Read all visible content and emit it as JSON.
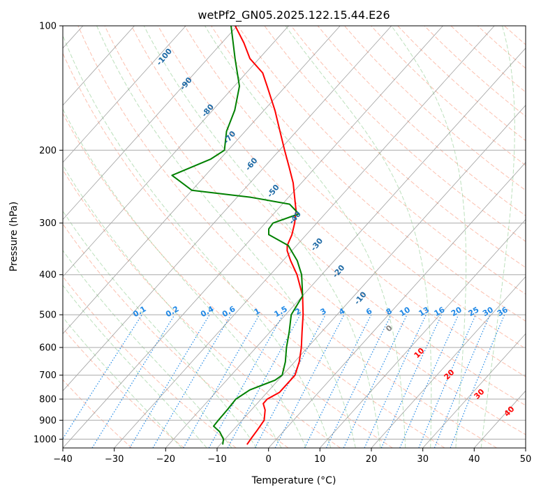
{
  "chart_data": {
    "type": "line",
    "chart_kind": "skew-T log-P diagram",
    "title": "wetPf2_GN05.2025.122.15.44.E26",
    "xlabel": "Temperature (°C)",
    "ylabel": "Pressure (hPa)",
    "xlim": [
      -40,
      50
    ],
    "ylim": [
      1050,
      100
    ],
    "y_scale": "log",
    "x_ticks": [
      -40,
      -30,
      -20,
      -10,
      0,
      10,
      20,
      30,
      40,
      50
    ],
    "x_tick_labels": [
      "−40",
      "−30",
      "−20",
      "−10",
      "0",
      "10",
      "20",
      "30",
      "40",
      "50"
    ],
    "y_ticks": [
      1000,
      900,
      800,
      700,
      600,
      500,
      400,
      300,
      200,
      100
    ],
    "y_tick_labels": [
      "1000",
      "900",
      "800",
      "700",
      "600",
      "500",
      "400",
      "300",
      "200",
      "100"
    ],
    "grid": true,
    "colors": {
      "temperature": "#ff0000",
      "dewpoint": "#008000",
      "dry_adiabat": "#fa8d6e",
      "moist_adiabat": "#8fcc8f",
      "mixing_ratio": "#1f88e6",
      "isotherm": "#808080",
      "wet_bulb_label": "#1f6aa5",
      "isobar": "#a9a9a9"
    },
    "series": [
      {
        "key": "temperature",
        "points": [
          {
            "p": 1030,
            "t": -4.8
          },
          {
            "p": 1000,
            "t": -5.0
          },
          {
            "p": 950,
            "t": -5.3
          },
          {
            "p": 900,
            "t": -5.7
          },
          {
            "p": 850,
            "t": -7.3
          },
          {
            "p": 820,
            "t": -8.8
          },
          {
            "p": 800,
            "t": -8.8
          },
          {
            "p": 770,
            "t": -7.6
          },
          {
            "p": 700,
            "t": -7.6
          },
          {
            "p": 650,
            "t": -9.1
          },
          {
            "p": 600,
            "t": -11.2
          },
          {
            "p": 550,
            "t": -13.8
          },
          {
            "p": 500,
            "t": -16.6
          },
          {
            "p": 450,
            "t": -20.0
          },
          {
            "p": 400,
            "t": -24.8
          },
          {
            "p": 370,
            "t": -28.5
          },
          {
            "p": 350,
            "t": -30.9
          },
          {
            "p": 340,
            "t": -31.8
          },
          {
            "p": 320,
            "t": -32.8
          },
          {
            "p": 300,
            "t": -34.3
          },
          {
            "p": 280,
            "t": -36.2
          },
          {
            "p": 260,
            "t": -38.8
          },
          {
            "p": 240,
            "t": -41.6
          },
          {
            "p": 220,
            "t": -45.1
          },
          {
            "p": 200,
            "t": -49.0
          },
          {
            "p": 180,
            "t": -53.2
          },
          {
            "p": 160,
            "t": -57.9
          },
          {
            "p": 140,
            "t": -63.6
          },
          {
            "p": 130,
            "t": -66.8
          },
          {
            "p": 120,
            "t": -71.8
          },
          {
            "p": 110,
            "t": -75.7
          },
          {
            "p": 100,
            "t": -80.4
          }
        ]
      },
      {
        "key": "dewpoint",
        "points": [
          {
            "p": 1030,
            "t": -9.5
          },
          {
            "p": 1000,
            "t": -10.3
          },
          {
            "p": 960,
            "t": -12.3
          },
          {
            "p": 930,
            "t": -14.5
          },
          {
            "p": 900,
            "t": -14.6
          },
          {
            "p": 850,
            "t": -14.7
          },
          {
            "p": 800,
            "t": -14.9
          },
          {
            "p": 760,
            "t": -13.8
          },
          {
            "p": 720,
            "t": -10.6
          },
          {
            "p": 700,
            "t": -10.1
          },
          {
            "p": 650,
            "t": -11.8
          },
          {
            "p": 600,
            "t": -14.1
          },
          {
            "p": 550,
            "t": -16.3
          },
          {
            "p": 500,
            "t": -18.9
          },
          {
            "p": 450,
            "t": -20.0
          },
          {
            "p": 400,
            "t": -23.9
          },
          {
            "p": 370,
            "t": -27.2
          },
          {
            "p": 340,
            "t": -31.6
          },
          {
            "p": 320,
            "t": -37.3
          },
          {
            "p": 310,
            "t": -38.3
          },
          {
            "p": 300,
            "t": -38.5
          },
          {
            "p": 285,
            "t": -35.1
          },
          {
            "p": 270,
            "t": -38.6
          },
          {
            "p": 260,
            "t": -47.3
          },
          {
            "p": 250,
            "t": -60.0
          },
          {
            "p": 230,
            "t": -66.5
          },
          {
            "p": 210,
            "t": -61.8
          },
          {
            "p": 200,
            "t": -60.7
          },
          {
            "p": 180,
            "t": -63.6
          },
          {
            "p": 160,
            "t": -65.7
          },
          {
            "p": 140,
            "t": -69.0
          },
          {
            "p": 120,
            "t": -74.7
          },
          {
            "p": 110,
            "t": -77.8
          },
          {
            "p": 100,
            "t": -81.2
          }
        ]
      }
    ],
    "mixing_ratio_labels": [
      "0.1",
      "0.2",
      "0.4",
      "0.6",
      "1",
      "1.5",
      "2",
      "3",
      "4",
      "6",
      "8",
      "10",
      "13",
      "16",
      "20",
      "25",
      "30",
      "36"
    ],
    "mixing_ratio_values": [
      0.1,
      0.2,
      0.4,
      0.6,
      1,
      1.5,
      2,
      3,
      4,
      6,
      8,
      10,
      13,
      16,
      20,
      25,
      30,
      36
    ],
    "wet_bulb_labels": [
      {
        "text": "-100",
        "value": -100
      },
      {
        "text": "-90",
        "value": -90
      },
      {
        "text": "-80",
        "value": -80
      },
      {
        "text": "-70",
        "value": -70
      },
      {
        "text": "-60",
        "value": -60
      },
      {
        "text": "-50",
        "value": -50
      },
      {
        "text": "-40",
        "value": -40
      },
      {
        "text": "-30",
        "value": -30
      },
      {
        "text": "-20",
        "value": -20
      },
      {
        "text": "-10",
        "value": -10
      }
    ],
    "warm_isotherm_labels": [
      {
        "text": "0",
        "value": 0
      },
      {
        "text": "10",
        "value": 10
      },
      {
        "text": "20",
        "value": 20
      },
      {
        "text": "30",
        "value": 30
      },
      {
        "text": "40",
        "value": 40
      }
    ]
  }
}
